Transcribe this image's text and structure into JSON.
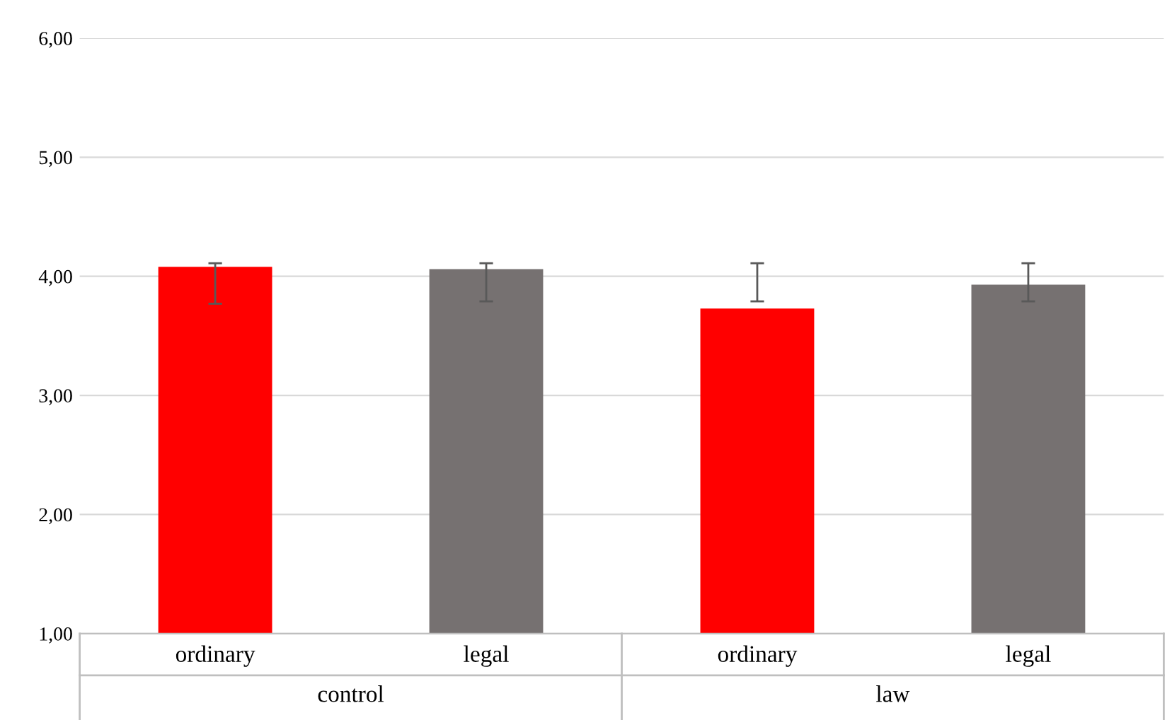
{
  "chart_data": {
    "type": "bar",
    "categories": [
      "ordinary",
      "legal",
      "ordinary",
      "legal"
    ],
    "values": [
      4.08,
      4.06,
      3.73,
      3.93
    ],
    "colors": [
      "#ff0000",
      "#767171",
      "#ff0000",
      "#767171"
    ],
    "errors": [
      [
        3.77,
        4.11
      ],
      [
        3.79,
        4.11
      ],
      [
        3.79,
        4.11
      ],
      [
        3.79,
        4.11
      ]
    ],
    "annotations": [
      "control",
      "law"
    ],
    "ylim": [
      1,
      6
    ],
    "yticks": [
      {
        "value": 1,
        "label": "1,00"
      },
      {
        "value": 2,
        "label": "2,00"
      },
      {
        "value": 3,
        "label": "3,00"
      },
      {
        "value": 4,
        "label": "4,00"
      },
      {
        "value": 5,
        "label": "5,00"
      },
      {
        "value": 6,
        "label": "6,00"
      }
    ],
    "grid": "y"
  }
}
